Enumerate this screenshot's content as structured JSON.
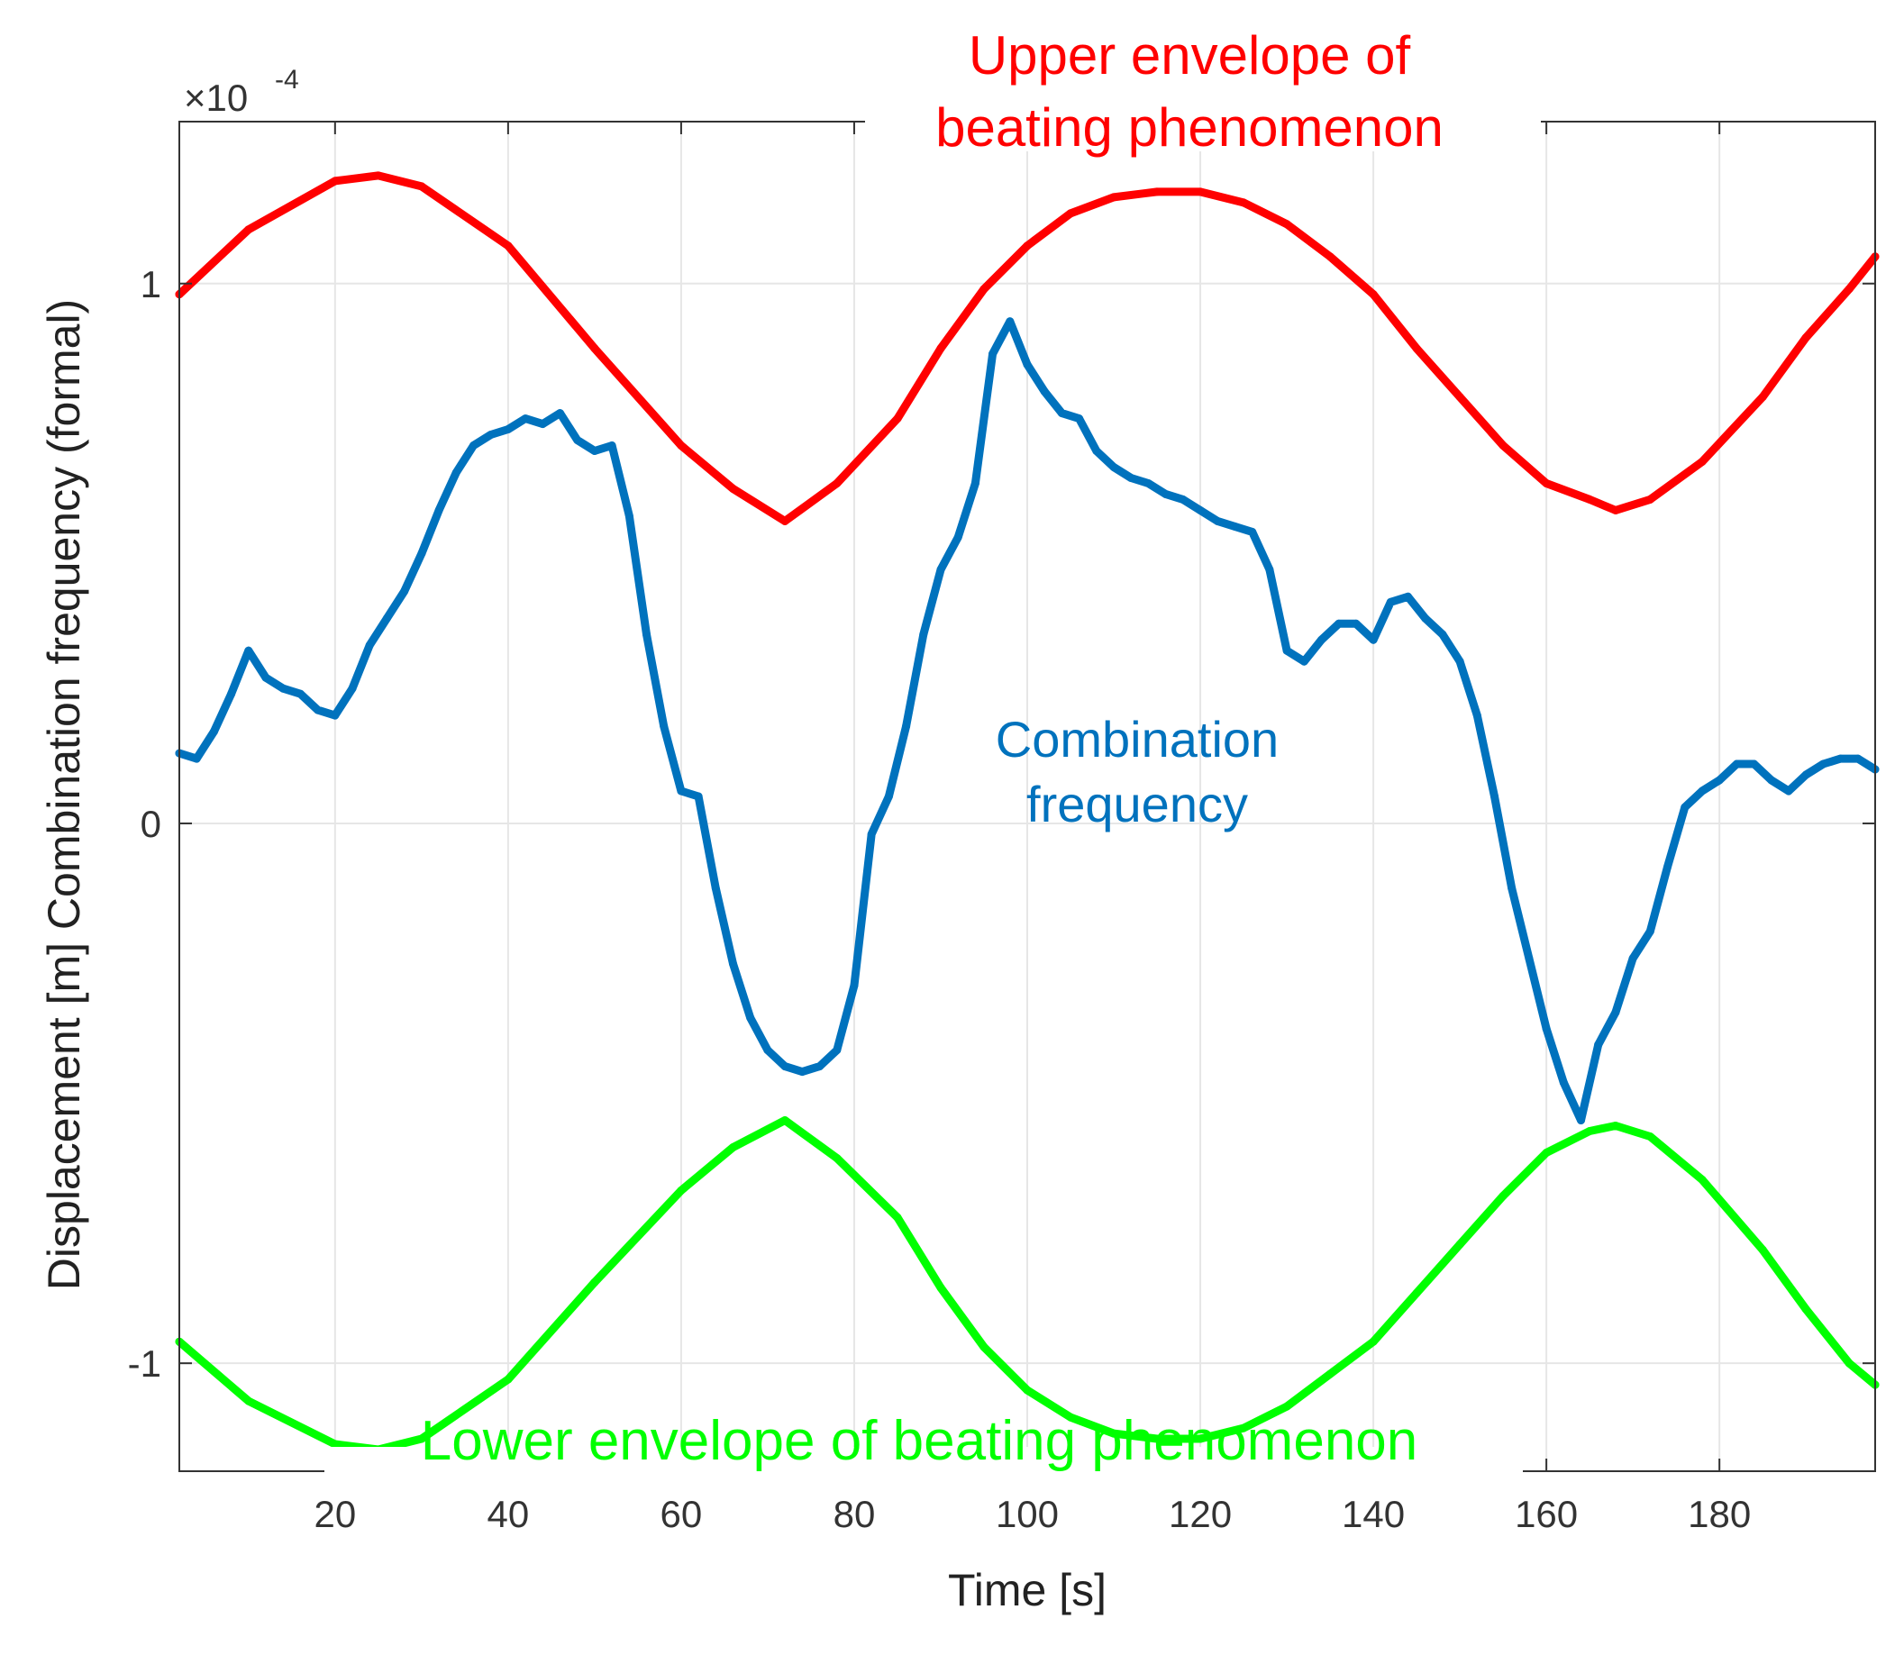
{
  "chart_data": {
    "type": "line",
    "title": "",
    "xlabel": "Time [s]",
    "ylabel": "Displacement [m] Combination frequency (formal)",
    "exponent_label": {
      "base": "×10",
      "power": "-4"
    },
    "xlim": [
      2,
      198
    ],
    "ylim": [
      -1.2,
      1.3
    ],
    "grid": true,
    "x_ticks": [
      20,
      40,
      60,
      80,
      100,
      120,
      140,
      160,
      180
    ],
    "y_ticks": [
      -1,
      0,
      1
    ],
    "y_tick_labels": [
      "-1",
      "0",
      "1"
    ],
    "annotations": [
      {
        "name": "upper-envelope-label",
        "lines": [
          "Upper envelope of",
          "beating phenomenon"
        ],
        "color": "#ff0000"
      },
      {
        "name": "combination-frequency-label",
        "lines": [
          "Combination",
          "frequency"
        ],
        "color": "#0072bd"
      },
      {
        "name": "lower-envelope-label",
        "lines": [
          "Lower envelope of beating phenomenon"
        ],
        "color": "#00ff00"
      }
    ],
    "series": [
      {
        "name": "Upper envelope of beating phenomenon",
        "color": "#ff0000",
        "x": [
          2,
          10,
          20,
          25,
          30,
          40,
          50,
          60,
          66,
          72,
          78,
          85,
          90,
          95,
          100,
          105,
          110,
          115,
          120,
          125,
          130,
          135,
          140,
          145,
          150,
          155,
          160,
          165,
          168,
          172,
          178,
          185,
          190,
          195,
          198
        ],
        "y": [
          0.98,
          1.1,
          1.19,
          1.2,
          1.18,
          1.07,
          0.88,
          0.7,
          0.62,
          0.56,
          0.63,
          0.75,
          0.88,
          0.99,
          1.07,
          1.13,
          1.16,
          1.17,
          1.17,
          1.15,
          1.11,
          1.05,
          0.98,
          0.88,
          0.79,
          0.7,
          0.63,
          0.6,
          0.58,
          0.6,
          0.67,
          0.79,
          0.9,
          0.99,
          1.05
        ]
      },
      {
        "name": "Combination frequency",
        "color": "#0072bd",
        "x": [
          2,
          4,
          6,
          8,
          10,
          12,
          14,
          16,
          18,
          20,
          22,
          24,
          26,
          28,
          30,
          32,
          34,
          36,
          38,
          40,
          42,
          44,
          46,
          48,
          50,
          52,
          54,
          56,
          58,
          60,
          62,
          64,
          66,
          68,
          70,
          72,
          74,
          76,
          78,
          80,
          82,
          84,
          86,
          88,
          90,
          92,
          94,
          96,
          98,
          100,
          102,
          104,
          106,
          108,
          110,
          112,
          114,
          116,
          118,
          120,
          122,
          124,
          126,
          128,
          130,
          132,
          134,
          136,
          138,
          140,
          142,
          144,
          146,
          148,
          150,
          152,
          154,
          156,
          158,
          160,
          162,
          164,
          166,
          168,
          170,
          172,
          174,
          176,
          178,
          180,
          182,
          184,
          186,
          188,
          190,
          192,
          194,
          196,
          198
        ],
        "y": [
          0.13,
          0.12,
          0.17,
          0.24,
          0.32,
          0.27,
          0.25,
          0.24,
          0.21,
          0.2,
          0.25,
          0.33,
          0.38,
          0.43,
          0.5,
          0.58,
          0.65,
          0.7,
          0.72,
          0.73,
          0.75,
          0.74,
          0.76,
          0.71,
          0.69,
          0.7,
          0.57,
          0.35,
          0.18,
          0.06,
          0.05,
          -0.12,
          -0.26,
          -0.36,
          -0.42,
          -0.45,
          -0.46,
          -0.45,
          -0.42,
          -0.3,
          -0.02,
          0.05,
          0.18,
          0.35,
          0.47,
          0.53,
          0.63,
          0.87,
          0.93,
          0.85,
          0.8,
          0.76,
          0.75,
          0.69,
          0.66,
          0.64,
          0.63,
          0.61,
          0.6,
          0.58,
          0.56,
          0.55,
          0.54,
          0.47,
          0.32,
          0.3,
          0.34,
          0.37,
          0.37,
          0.34,
          0.41,
          0.42,
          0.38,
          0.35,
          0.3,
          0.2,
          0.05,
          -0.12,
          -0.25,
          -0.38,
          -0.48,
          -0.55,
          -0.41,
          -0.35,
          -0.25,
          -0.2,
          -0.08,
          0.03,
          0.06,
          0.08,
          0.11,
          0.11,
          0.08,
          0.06,
          0.09,
          0.11,
          0.12,
          0.12,
          0.1
        ]
      },
      {
        "name": "Lower envelope of beating phenomenon",
        "color": "#00ff00",
        "x": [
          2,
          10,
          20,
          25,
          30,
          40,
          50,
          60,
          66,
          72,
          78,
          85,
          90,
          95,
          100,
          105,
          110,
          115,
          120,
          125,
          130,
          135,
          140,
          145,
          150,
          155,
          160,
          165,
          168,
          172,
          178,
          185,
          190,
          195,
          198
        ],
        "y": [
          -0.96,
          -1.07,
          -1.15,
          -1.16,
          -1.14,
          -1.03,
          -0.85,
          -0.68,
          -0.6,
          -0.55,
          -0.62,
          -0.73,
          -0.86,
          -0.97,
          -1.05,
          -1.1,
          -1.13,
          -1.14,
          -1.14,
          -1.12,
          -1.08,
          -1.02,
          -0.96,
          -0.87,
          -0.78,
          -0.69,
          -0.61,
          -0.57,
          -0.56,
          -0.58,
          -0.66,
          -0.79,
          -0.9,
          -1.0,
          -1.04
        ]
      }
    ]
  }
}
